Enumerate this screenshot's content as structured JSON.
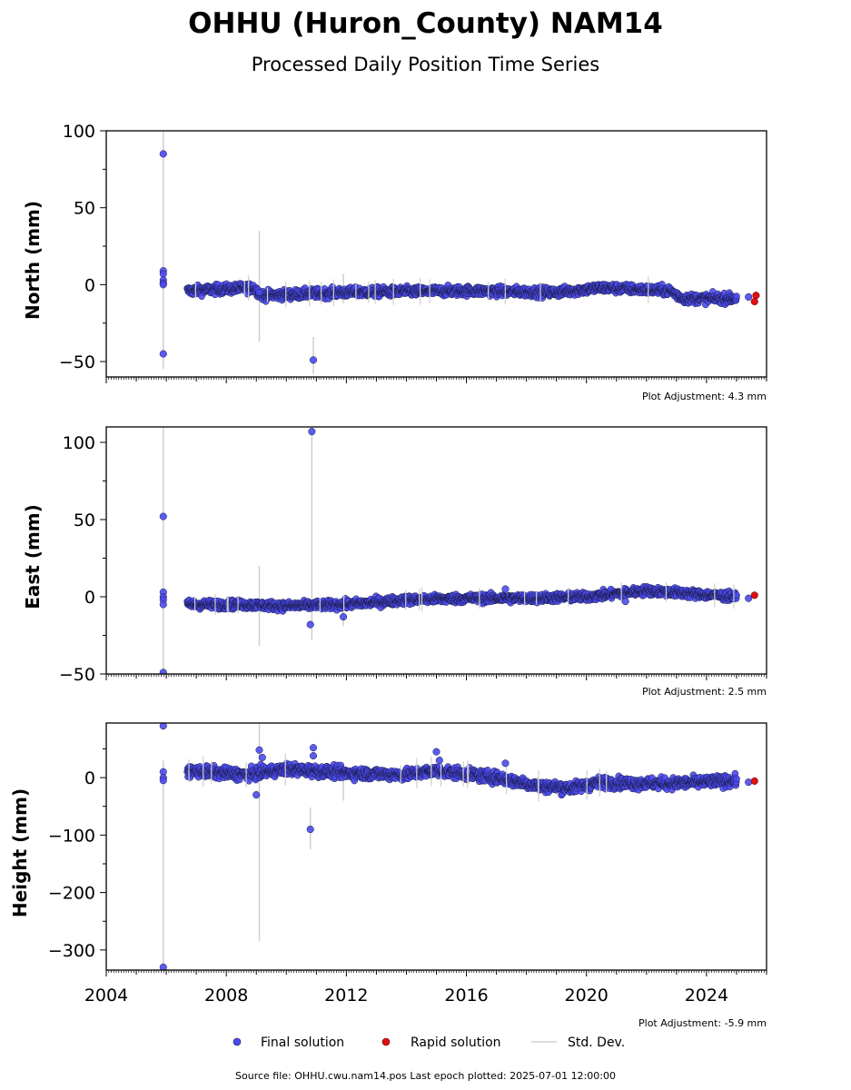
{
  "figure": {
    "title": "OHHU (Huron_County) NAM14",
    "subtitle": "Processed Daily Position Time Series",
    "footer": "Source file: OHHU.cwu.nam14.pos  Last epoch plotted: 2025-07-01 12:00:00"
  },
  "legend": {
    "final_label": "Final solution",
    "rapid_label": "Rapid solution",
    "std_label": "Std. Dev."
  },
  "colors": {
    "final": "#4a4af0",
    "final_edge": "#1a1a40",
    "rapid": "#e01010",
    "std": "#cfcfcf"
  },
  "chart_data": [
    {
      "type": "scatter",
      "ylabel": "North (mm)",
      "adjustment_label": "Plot Adjustment: 4.3 mm",
      "xlim": [
        2004,
        2026
      ],
      "ylim": [
        -60,
        100
      ],
      "yticks": [
        -50,
        0,
        50,
        100
      ],
      "ytick_labels": [
        "−50",
        "0",
        "50",
        "100"
      ],
      "trend": [
        [
          2006.7,
          -4
        ],
        [
          2008.9,
          -2
        ],
        [
          2009.2,
          -7
        ],
        [
          2012,
          -5
        ],
        [
          2016,
          -4
        ],
        [
          2019,
          -5
        ],
        [
          2020.5,
          -2
        ],
        [
          2022.8,
          -4
        ],
        [
          2023.2,
          -9
        ],
        [
          2025.0,
          -9
        ]
      ],
      "trend_noise": 2.2,
      "outliers": [
        [
          2005.9,
          85
        ],
        [
          2005.9,
          9
        ],
        [
          2005.9,
          7
        ],
        [
          2005.9,
          3
        ],
        [
          2005.9,
          1
        ],
        [
          2005.9,
          0
        ],
        [
          2005.9,
          -45
        ],
        [
          2009.1,
          -5
        ],
        [
          2010.9,
          -49
        ]
      ],
      "std_bars": [
        [
          2005.9,
          100,
          -55
        ],
        [
          2009.1,
          35,
          -37
        ],
        [
          2010.9,
          -34,
          -58
        ],
        [
          2011.9,
          7,
          -12
        ]
      ],
      "final_tail": [
        [
          2025.4,
          -8
        ]
      ],
      "rapid": [
        [
          2025.65,
          -7
        ],
        [
          2025.6,
          -11
        ]
      ]
    },
    {
      "type": "scatter",
      "ylabel": "East (mm)",
      "adjustment_label": "Plot Adjustment: 2.5 mm",
      "xlim": [
        2004,
        2026
      ],
      "ylim": [
        -50,
        110
      ],
      "yticks": [
        -50,
        0,
        50,
        100
      ],
      "ytick_labels": [
        "−50",
        "0",
        "50",
        "100"
      ],
      "trend": [
        [
          2006.7,
          -5
        ],
        [
          2008.5,
          -5
        ],
        [
          2010,
          -6
        ],
        [
          2012,
          -5
        ],
        [
          2014,
          -2
        ],
        [
          2016,
          -1
        ],
        [
          2018,
          -1
        ],
        [
          2020,
          0
        ],
        [
          2022,
          4
        ],
        [
          2023.5,
          2
        ],
        [
          2025.0,
          0
        ]
      ],
      "trend_noise": 2.0,
      "outliers": [
        [
          2005.9,
          52
        ],
        [
          2005.9,
          3
        ],
        [
          2005.9,
          0
        ],
        [
          2005.9,
          -2
        ],
        [
          2005.9,
          -5
        ],
        [
          2005.9,
          -49
        ],
        [
          2010.85,
          107
        ],
        [
          2010.8,
          -18
        ],
        [
          2011.9,
          -13
        ],
        [
          2017.3,
          5
        ],
        [
          2021.3,
          -3
        ]
      ],
      "std_bars": [
        [
          2005.9,
          110,
          -50
        ],
        [
          2009.1,
          20,
          -32
        ],
        [
          2010.85,
          106,
          -28
        ],
        [
          2011.9,
          -8,
          -19
        ]
      ],
      "final_tail": [
        [
          2025.4,
          -1
        ]
      ],
      "rapid": [
        [
          2025.6,
          1
        ]
      ]
    },
    {
      "type": "scatter",
      "ylabel": "Height (mm)",
      "adjustment_label": "Plot Adjustment: -5.9 mm",
      "xlim": [
        2004,
        2026
      ],
      "ylim": [
        -335,
        95
      ],
      "yticks": [
        -300,
        -200,
        -100,
        0
      ],
      "ytick_labels": [
        "−300",
        "−200",
        "−100",
        "0"
      ],
      "trend": [
        [
          2006.7,
          12
        ],
        [
          2008.7,
          5
        ],
        [
          2010,
          15
        ],
        [
          2012,
          8
        ],
        [
          2014,
          5
        ],
        [
          2015,
          12
        ],
        [
          2017,
          0
        ],
        [
          2018.5,
          -15
        ],
        [
          2019.5,
          -18
        ],
        [
          2020.5,
          -8
        ],
        [
          2021.5,
          -10
        ],
        [
          2023,
          -10
        ],
        [
          2025.0,
          -5
        ]
      ],
      "trend_noise": 7,
      "outliers": [
        [
          2005.9,
          90
        ],
        [
          2005.9,
          10
        ],
        [
          2005.9,
          0
        ],
        [
          2005.9,
          -5
        ],
        [
          2005.9,
          -330
        ],
        [
          2009.1,
          48
        ],
        [
          2009.2,
          35
        ],
        [
          2010.9,
          52
        ],
        [
          2010.9,
          38
        ],
        [
          2010.8,
          -90
        ],
        [
          2009.0,
          -30
        ],
        [
          2015.0,
          45
        ],
        [
          2015.1,
          30
        ],
        [
          2017.3,
          25
        ]
      ],
      "std_bars": [
        [
          2005.9,
          30,
          -80
        ],
        [
          2005.9,
          -80,
          -330
        ],
        [
          2009.1,
          95,
          -285
        ],
        [
          2010.8,
          -52,
          -125
        ],
        [
          2011.9,
          20,
          -40
        ]
      ],
      "final_tail": [
        [
          2025.4,
          -8
        ]
      ],
      "rapid": [
        [
          2025.6,
          -6
        ]
      ]
    }
  ],
  "x_axis": {
    "ticks": [
      2004,
      2008,
      2012,
      2016,
      2020,
      2024
    ],
    "tick_labels": [
      "2004",
      "2008",
      "2012",
      "2016",
      "2020",
      "2024"
    ]
  }
}
